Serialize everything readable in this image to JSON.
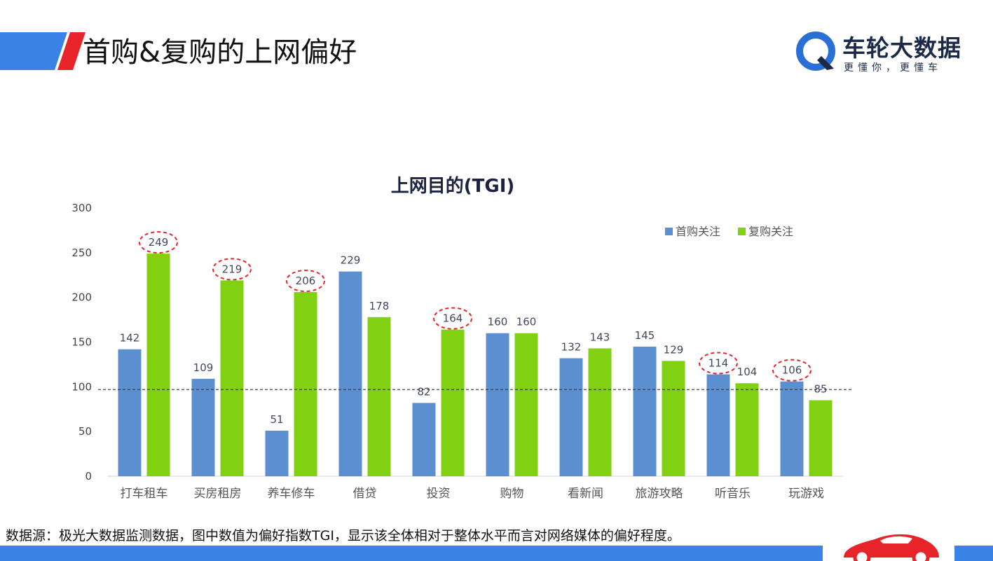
{
  "header": {
    "title": "首购&复购的上网偏好",
    "accent_color": "#3a82e6",
    "stripe_color": "#e8242b"
  },
  "logo": {
    "name": "车轮大数据",
    "slogan": "更懂你，更懂车",
    "mark_color": "#2a6fd6"
  },
  "chart_data": {
    "type": "bar",
    "title": "上网目的(TGI)",
    "categories": [
      "打车租车",
      "买房租房",
      "养车修车",
      "借贷",
      "投资",
      "购物",
      "看新闻",
      "旅游攻略",
      "听音乐",
      "玩游戏"
    ],
    "series": [
      {
        "name": "首购关注",
        "color": "#5b8fd0",
        "values": [
          142,
          109,
          51,
          229,
          82,
          160,
          132,
          145,
          114,
          106
        ]
      },
      {
        "name": "复购关注",
        "color": "#82d012",
        "values": [
          249,
          219,
          206,
          178,
          164,
          160,
          143,
          129,
          104,
          85
        ]
      }
    ],
    "y_ticks": [
      0,
      50,
      100,
      150,
      200,
      250,
      300
    ],
    "ylim": [
      0,
      300
    ],
    "reference_line": 97,
    "legend_position": "top-right",
    "highlighted": [
      {
        "series": 1,
        "index": 0
      },
      {
        "series": 1,
        "index": 1
      },
      {
        "series": 1,
        "index": 2
      },
      {
        "series": 1,
        "index": 4
      },
      {
        "series": 0,
        "index": 8
      },
      {
        "series": 0,
        "index": 9
      }
    ],
    "highlight_color": "#e8242b",
    "grid": false
  },
  "footer": {
    "note": "数据源：极光大数据监测数据，图中数值为偏好指数TGI，显示该全体相对于整体水平而言对网络媒体的偏好程度。",
    "bar_color": "#3a82e6",
    "car_color": "#e8242b"
  }
}
